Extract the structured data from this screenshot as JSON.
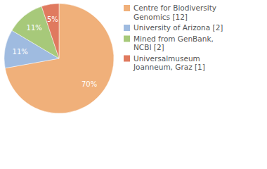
{
  "chart_data": {
    "type": "pie",
    "categories": [
      "Centre for Biodiversity Genomics [12]",
      "University of Arizona [2]",
      "Mined from GenBank, NCBI [2]",
      "Universalmuseum Joanneum, Graz [1]"
    ],
    "values": [
      70,
      11,
      11,
      5
    ],
    "value_labels": [
      "70%",
      "11%",
      "11%",
      "5%"
    ],
    "colors": [
      "#f0b07a",
      "#9fbbe0",
      "#a7c97a",
      "#e07a5f"
    ],
    "data_labels": true,
    "legend": "top-right"
  }
}
